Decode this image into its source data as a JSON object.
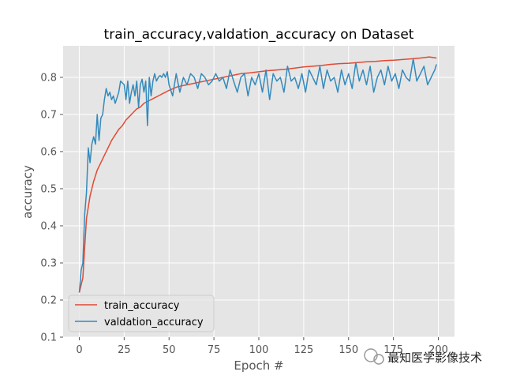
{
  "chart_data": {
    "type": "line",
    "title": "train_accuracy,valdation_accuracy on Dataset",
    "xlabel": "Epoch #",
    "ylabel": "accuracy",
    "xlim": [
      -9,
      209
    ],
    "ylim": [
      0.1,
      0.885
    ],
    "xticks": [
      0,
      25,
      50,
      75,
      100,
      125,
      150,
      175,
      200
    ],
    "yticks": [
      0.1,
      0.2,
      0.3,
      0.4,
      0.5,
      0.6,
      0.7,
      0.8
    ],
    "grid": true,
    "legend_position": "lower left",
    "series": [
      {
        "name": "train_accuracy",
        "color": "#e24a33",
        "x": [
          0,
          2,
          4,
          6,
          8,
          10,
          12,
          14,
          16,
          18,
          20,
          22,
          24,
          26,
          28,
          30,
          32,
          34,
          36,
          38,
          40,
          42,
          44,
          46,
          48,
          50,
          55,
          60,
          65,
          70,
          75,
          80,
          85,
          90,
          95,
          100,
          105,
          110,
          115,
          120,
          125,
          130,
          135,
          140,
          145,
          150,
          155,
          160,
          165,
          170,
          175,
          180,
          185,
          190,
          195,
          199
        ],
        "y": [
          0.22,
          0.26,
          0.42,
          0.48,
          0.52,
          0.55,
          0.57,
          0.59,
          0.61,
          0.63,
          0.645,
          0.66,
          0.67,
          0.685,
          0.695,
          0.705,
          0.715,
          0.72,
          0.73,
          0.735,
          0.74,
          0.745,
          0.75,
          0.755,
          0.76,
          0.765,
          0.775,
          0.78,
          0.785,
          0.79,
          0.795,
          0.8,
          0.805,
          0.81,
          0.812,
          0.815,
          0.818,
          0.82,
          0.822,
          0.825,
          0.828,
          0.83,
          0.832,
          0.835,
          0.837,
          0.838,
          0.84,
          0.842,
          0.843,
          0.845,
          0.846,
          0.848,
          0.85,
          0.852,
          0.855,
          0.852
        ]
      },
      {
        "name": "valdation_accuracy",
        "color": "#348abd",
        "x": [
          0,
          1,
          2,
          3,
          4,
          5,
          6,
          7,
          8,
          9,
          10,
          11,
          12,
          13,
          14,
          15,
          16,
          17,
          18,
          19,
          20,
          21,
          22,
          23,
          24,
          25,
          26,
          27,
          28,
          29,
          30,
          31,
          32,
          33,
          34,
          35,
          36,
          37,
          38,
          39,
          40,
          41,
          42,
          43,
          44,
          45,
          46,
          47,
          48,
          49,
          50,
          52,
          54,
          56,
          58,
          60,
          62,
          64,
          66,
          68,
          70,
          72,
          74,
          76,
          78,
          80,
          82,
          84,
          86,
          88,
          90,
          92,
          94,
          96,
          98,
          100,
          102,
          104,
          106,
          108,
          110,
          112,
          114,
          116,
          118,
          120,
          122,
          124,
          126,
          128,
          130,
          132,
          134,
          136,
          138,
          140,
          142,
          144,
          146,
          148,
          150,
          152,
          154,
          156,
          158,
          160,
          162,
          164,
          166,
          168,
          170,
          172,
          174,
          176,
          178,
          180,
          182,
          184,
          186,
          188,
          190,
          192,
          194,
          196,
          198,
          199
        ],
        "y": [
          0.22,
          0.28,
          0.3,
          0.43,
          0.49,
          0.61,
          0.57,
          0.62,
          0.64,
          0.62,
          0.7,
          0.63,
          0.69,
          0.7,
          0.74,
          0.77,
          0.75,
          0.76,
          0.74,
          0.75,
          0.73,
          0.745,
          0.76,
          0.79,
          0.785,
          0.78,
          0.74,
          0.79,
          0.73,
          0.76,
          0.78,
          0.75,
          0.79,
          0.72,
          0.78,
          0.795,
          0.76,
          0.79,
          0.67,
          0.8,
          0.75,
          0.79,
          0.81,
          0.79,
          0.8,
          0.805,
          0.8,
          0.81,
          0.8,
          0.815,
          0.78,
          0.75,
          0.81,
          0.76,
          0.8,
          0.78,
          0.81,
          0.8,
          0.77,
          0.81,
          0.8,
          0.78,
          0.79,
          0.81,
          0.79,
          0.8,
          0.77,
          0.82,
          0.79,
          0.76,
          0.8,
          0.81,
          0.75,
          0.8,
          0.78,
          0.81,
          0.76,
          0.82,
          0.74,
          0.81,
          0.79,
          0.8,
          0.76,
          0.83,
          0.79,
          0.8,
          0.77,
          0.81,
          0.76,
          0.82,
          0.8,
          0.78,
          0.83,
          0.77,
          0.82,
          0.79,
          0.8,
          0.76,
          0.82,
          0.78,
          0.81,
          0.77,
          0.84,
          0.79,
          0.82,
          0.78,
          0.83,
          0.76,
          0.8,
          0.82,
          0.78,
          0.83,
          0.79,
          0.81,
          0.77,
          0.82,
          0.8,
          0.79,
          0.85,
          0.79,
          0.81,
          0.83,
          0.78,
          0.8,
          0.82,
          0.835
        ]
      }
    ]
  },
  "watermark": "最知医学影像技术"
}
